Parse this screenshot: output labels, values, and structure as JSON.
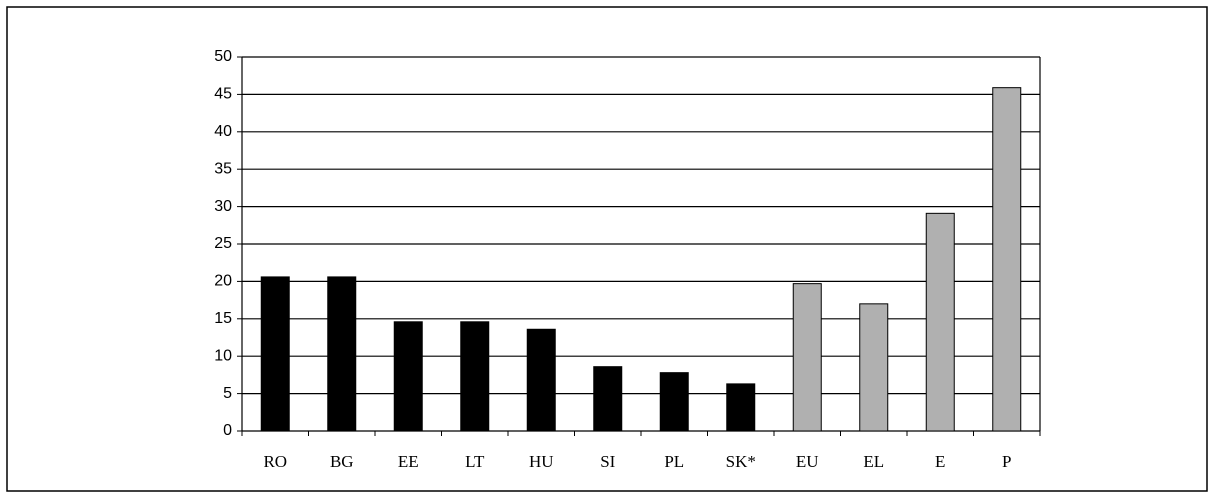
{
  "chart_data": {
    "type": "bar",
    "categories": [
      "RO",
      "BG",
      "EE",
      "LT",
      "HU",
      "SI",
      "PL",
      "SK*",
      "EU",
      "EL",
      "E",
      "P"
    ],
    "values": [
      20.6,
      20.6,
      14.6,
      14.6,
      13.6,
      8.6,
      7.8,
      6.3,
      19.7,
      17,
      29.1,
      45.9
    ],
    "colors": [
      "#000000",
      "#000000",
      "#000000",
      "#000000",
      "#000000",
      "#000000",
      "#000000",
      "#000000",
      "#b0b0b0",
      "#b0b0b0",
      "#b0b0b0",
      "#b0b0b0"
    ],
    "ylim": [
      0,
      50
    ],
    "yticks": [
      0,
      5,
      10,
      15,
      20,
      25,
      30,
      35,
      40,
      45,
      50
    ],
    "grid": true
  }
}
